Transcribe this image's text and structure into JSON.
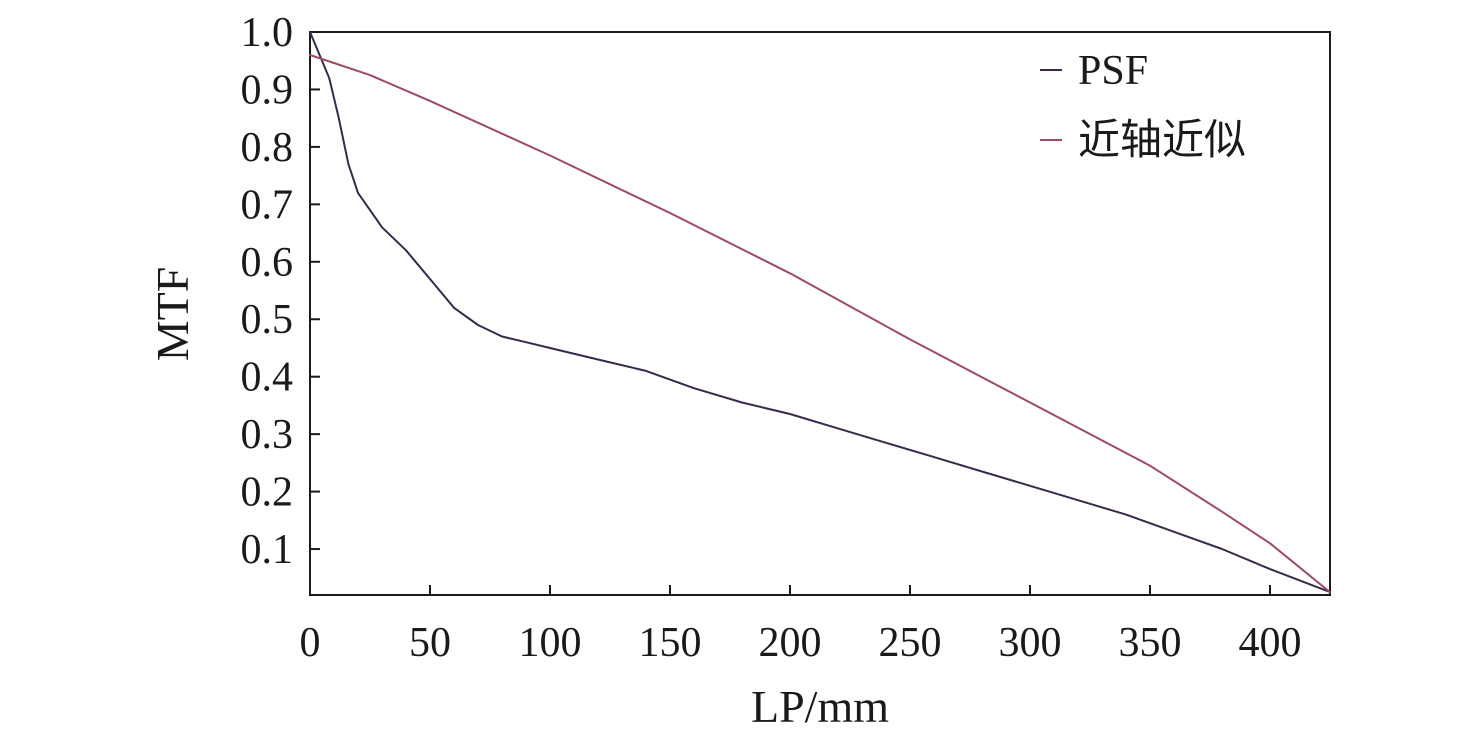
{
  "chart_data": {
    "type": "line",
    "xlabel": "LP/mm",
    "ylabel": "MTF",
    "xlim": [
      0,
      425
    ],
    "ylim": [
      0.02,
      1.0
    ],
    "xticks": [
      0,
      50,
      100,
      150,
      200,
      250,
      300,
      350,
      400
    ],
    "yticks": [
      0.1,
      0.2,
      0.3,
      0.4,
      0.5,
      0.6,
      0.7,
      0.8,
      0.9,
      1.0
    ],
    "xtick_labels": [
      "0",
      "50",
      "100",
      "150",
      "200",
      "250",
      "300",
      "350",
      "400"
    ],
    "ytick_labels": [
      "0.1",
      "0.2",
      "0.3",
      "0.4",
      "0.5",
      "0.6",
      "0.7",
      "0.8",
      "0.9",
      "1.0"
    ],
    "grid": false,
    "legend_position": "top-right",
    "series": [
      {
        "name": "PSF",
        "color": "#3a2a4a",
        "x": [
          0,
          4,
          8,
          12,
          16,
          20,
          25,
          30,
          35,
          40,
          45,
          50,
          55,
          60,
          70,
          80,
          90,
          100,
          120,
          140,
          160,
          180,
          200,
          220,
          240,
          260,
          280,
          300,
          320,
          340,
          350,
          360,
          380,
          400,
          425
        ],
        "y": [
          1.0,
          0.96,
          0.92,
          0.85,
          0.77,
          0.72,
          0.69,
          0.66,
          0.64,
          0.62,
          0.595,
          0.57,
          0.545,
          0.52,
          0.49,
          0.47,
          0.46,
          0.45,
          0.43,
          0.41,
          0.38,
          0.355,
          0.335,
          0.31,
          0.285,
          0.26,
          0.235,
          0.21,
          0.185,
          0.16,
          0.145,
          0.13,
          0.1,
          0.065,
          0.025
        ]
      },
      {
        "name": "近轴近似",
        "color": "#9e4a60",
        "x": [
          0,
          25,
          50,
          100,
          150,
          200,
          250,
          300,
          350,
          380,
          400,
          425
        ],
        "y": [
          0.96,
          0.925,
          0.88,
          0.785,
          0.685,
          0.58,
          0.465,
          0.355,
          0.245,
          0.165,
          0.11,
          0.025
        ]
      }
    ]
  }
}
